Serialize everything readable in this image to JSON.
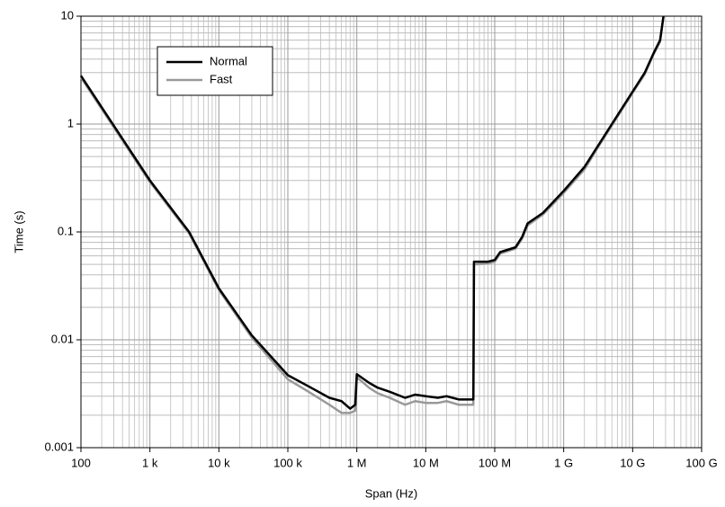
{
  "chart_data": {
    "type": "line",
    "x_label": "Span (Hz)",
    "y_label": "Time (s)",
    "x": [
      100,
      1000,
      3700,
      10000,
      30000,
      100000,
      200000,
      400000,
      600000,
      800000,
      950000,
      1000000,
      1500000,
      2000000,
      3000000,
      5000000,
      7000000,
      10000000,
      15000000,
      20000000,
      30000000,
      49000000,
      50000000,
      80000000,
      100000000,
      120000000,
      200000000,
      250000000,
      300000000,
      500000000,
      1000000000,
      2000000000,
      3000000000,
      5000000000,
      10000000000,
      15000000000,
      20000000000,
      25000000000,
      28000000000
    ],
    "series": [
      {
        "name": "Normal",
        "color": "#000000",
        "values": [
          2.8,
          0.3,
          0.1,
          0.03,
          0.011,
          0.0047,
          0.0037,
          0.0029,
          0.0027,
          0.0023,
          0.0025,
          0.0048,
          0.004,
          0.0036,
          0.0033,
          0.0029,
          0.0031,
          0.003,
          0.0029,
          0.003,
          0.0028,
          0.0028,
          0.053,
          0.053,
          0.055,
          0.065,
          0.072,
          0.09,
          0.12,
          0.15,
          0.24,
          0.4,
          0.6,
          1.0,
          2.0,
          3.0,
          4.5,
          6.0,
          10
        ]
      },
      {
        "name": "Fast",
        "color": "#999999",
        "values": [
          2.7,
          0.29,
          0.097,
          0.029,
          0.0105,
          0.0043,
          0.0033,
          0.0025,
          0.0021,
          0.0021,
          0.0022,
          0.0045,
          0.0036,
          0.0032,
          0.0029,
          0.0025,
          0.0027,
          0.0026,
          0.0026,
          0.0027,
          0.0025,
          0.0025,
          0.05,
          0.051,
          0.053,
          0.063,
          0.07,
          0.087,
          0.115,
          0.145,
          0.23,
          0.38,
          0.58,
          0.97,
          1.95,
          2.9,
          4.4,
          5.8,
          10
        ]
      }
    ],
    "x_log": true,
    "y_log": true,
    "xlim": [
      100,
      100000000000
    ],
    "ylim": [
      0.001,
      10
    ],
    "xticks": [
      100,
      {
        "value": 1000,
        "label": "1 k"
      },
      {
        "value": 10000,
        "label": "10 k"
      },
      {
        "value": 100000,
        "label": "100 k"
      },
      {
        "value": 1000000,
        "label": "1 M"
      },
      {
        "value": 10000000,
        "label": "10 M"
      },
      {
        "value": 100000000,
        "label": "100 M"
      },
      {
        "value": 1000000000,
        "label": "1 G"
      },
      {
        "value": 10000000000,
        "label": "10 G"
      },
      {
        "value": 100000000000,
        "label": "100 G"
      }
    ],
    "yticks": [
      0.001,
      0.01,
      0.1,
      1,
      10
    ],
    "grid": true,
    "minor_grid": true,
    "legend": "upper left"
  }
}
